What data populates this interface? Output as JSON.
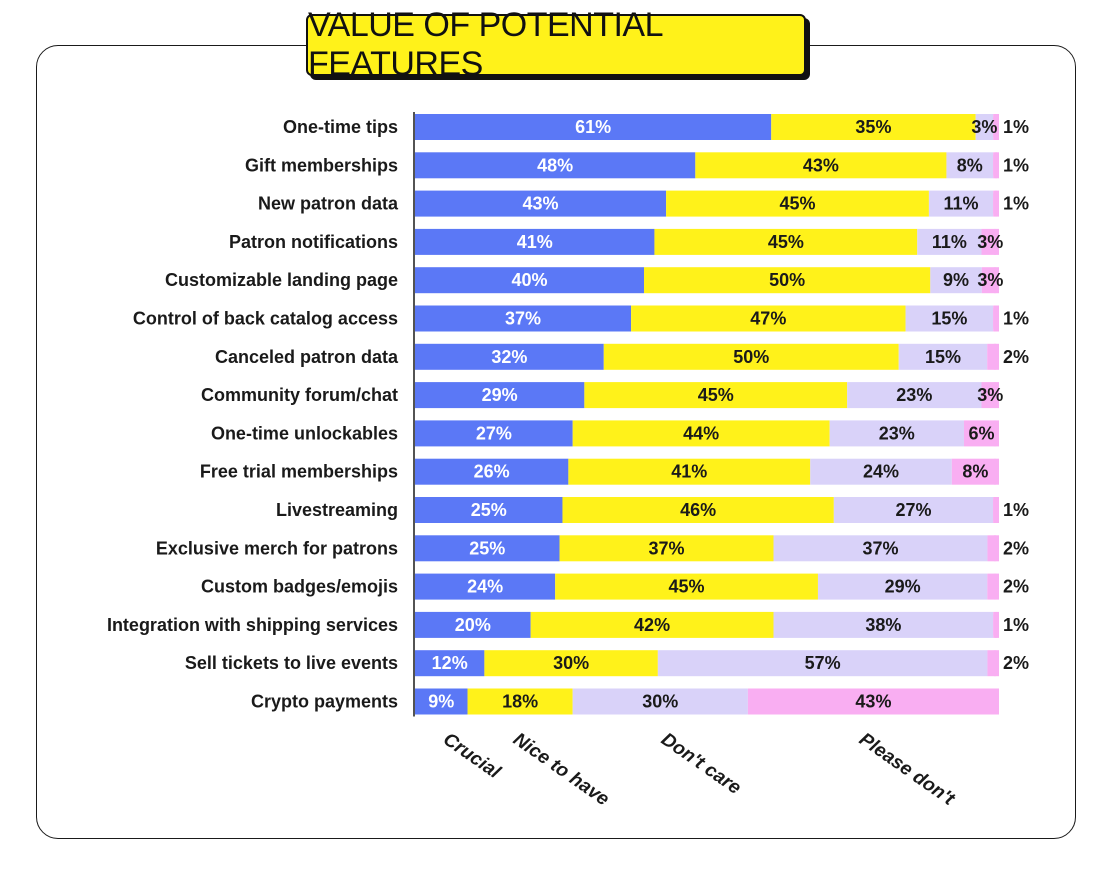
{
  "title": "VALUE OF POTENTIAL FEATURES",
  "colors": {
    "crucial": "#5b78f6",
    "nice": "#fff21a",
    "dont_care": "#d9d2f9",
    "please_dont": "#f9aef2",
    "text_dark": "#1a1a1a",
    "text_light": "#ffffff"
  },
  "chart_data": {
    "type": "bar",
    "orientation": "horizontal",
    "stacked": true,
    "title": "VALUE OF POTENTIAL FEATURES",
    "xlim": [
      0,
      100
    ],
    "categories": [
      "One-time tips",
      "Gift memberships",
      "New patron data",
      "Patron notifications",
      "Customizable landing page",
      "Control of back catalog access",
      "Canceled patron data",
      "Community forum/chat",
      "One-time unlockables",
      "Free trial memberships",
      "Livestreaming",
      "Exclusive merch for patrons",
      "Custom badges/emojis",
      "Integration with shipping services",
      "Sell tickets to live events",
      "Crypto payments"
    ],
    "series": [
      {
        "name": "Crucial",
        "key": "crucial",
        "values": [
          61,
          48,
          43,
          41,
          40,
          37,
          32,
          29,
          27,
          26,
          25,
          25,
          24,
          20,
          12,
          9
        ]
      },
      {
        "name": "Nice to have",
        "key": "nice",
        "values": [
          35,
          43,
          45,
          45,
          50,
          47,
          50,
          45,
          44,
          41,
          46,
          37,
          45,
          42,
          30,
          18
        ]
      },
      {
        "name": "Don't care",
        "key": "dont_care",
        "values": [
          3,
          8,
          11,
          11,
          9,
          15,
          15,
          23,
          23,
          24,
          27,
          37,
          29,
          38,
          57,
          30
        ]
      },
      {
        "name": "Please don't",
        "key": "please_dont",
        "values": [
          1,
          1,
          1,
          3,
          3,
          1,
          2,
          3,
          6,
          8,
          1,
          2,
          2,
          1,
          2,
          43
        ]
      }
    ],
    "legend": [
      "Crucial",
      "Nice to have",
      "Don't care",
      "Please don't"
    ]
  }
}
